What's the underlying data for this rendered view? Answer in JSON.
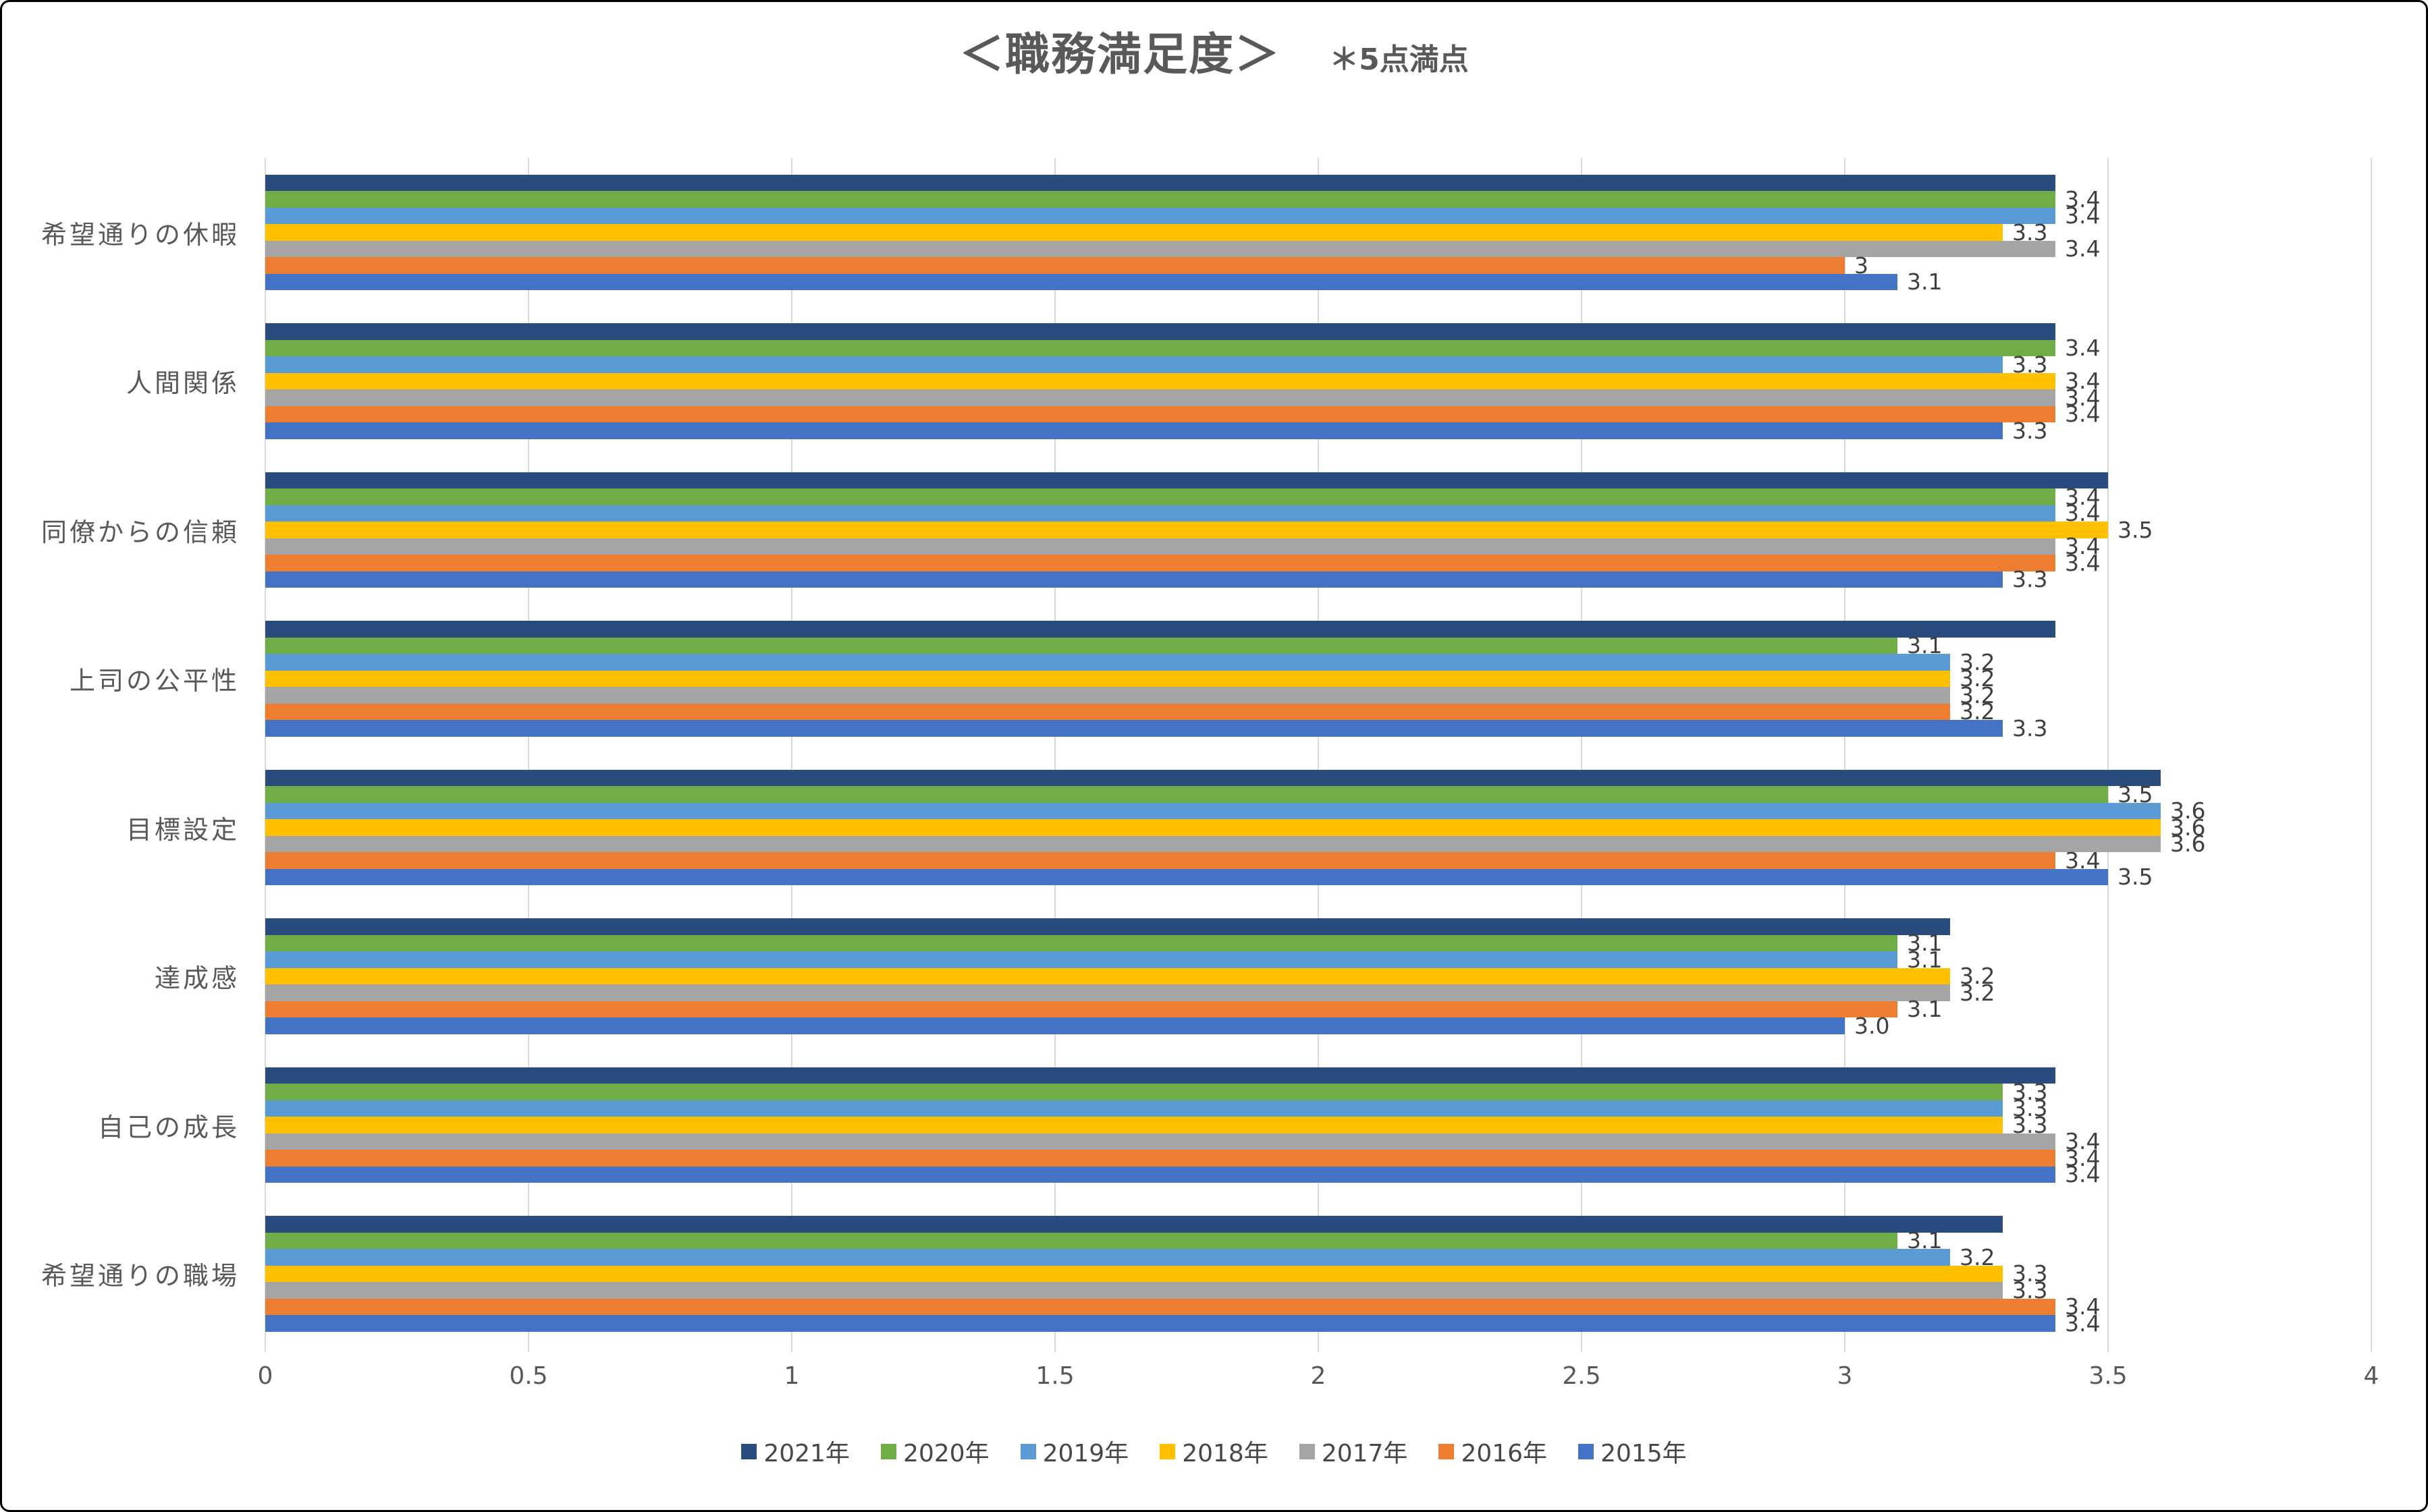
{
  "chart_data": {
    "type": "bar",
    "orientation": "horizontal",
    "title": "＜職務満足度＞",
    "note": "＊5点満点",
    "categories": [
      "希望通りの休暇",
      "人間関係",
      "同僚からの信頼",
      "上司の公平性",
      "目標設定",
      "達成感",
      "自己の成長",
      "希望通りの職場"
    ],
    "series": [
      {
        "name": "2021年",
        "color": "#2A4B7E",
        "values": [
          3.4,
          3.4,
          3.5,
          3.4,
          3.6,
          3.2,
          3.4,
          3.3
        ],
        "labels": [
          "",
          "",
          "",
          "",
          "",
          "",
          "",
          ""
        ]
      },
      {
        "name": "2020年",
        "color": "#70AD47",
        "values": [
          3.4,
          3.4,
          3.4,
          3.1,
          3.5,
          3.1,
          3.3,
          3.1
        ],
        "labels": [
          "3.4",
          "3.4",
          "3.4",
          "3.1",
          "3.5",
          "3.1",
          "3.3",
          "3.1"
        ]
      },
      {
        "name": "2019年",
        "color": "#5B9BD5",
        "values": [
          3.4,
          3.3,
          3.4,
          3.2,
          3.6,
          3.1,
          3.3,
          3.2
        ],
        "labels": [
          "3.4",
          "3.3",
          "3.4",
          "3.2",
          "3.6",
          "3.1",
          "3.3",
          "3.2"
        ]
      },
      {
        "name": "2018年",
        "color": "#FFC000",
        "values": [
          3.3,
          3.4,
          3.5,
          3.2,
          3.6,
          3.2,
          3.3,
          3.3
        ],
        "labels": [
          "3.3",
          "3.4",
          "3.5",
          "3.2",
          "3.6",
          "3.2",
          "3.3",
          "3.3"
        ]
      },
      {
        "name": "2017年",
        "color": "#A5A5A5",
        "values": [
          3.4,
          3.4,
          3.4,
          3.2,
          3.6,
          3.2,
          3.4,
          3.3
        ],
        "labels": [
          "3.4",
          "3.4",
          "3.4",
          "3.2",
          "3.6",
          "3.2",
          "3.4",
          "3.3"
        ]
      },
      {
        "name": "2016年",
        "color": "#ED7D31",
        "values": [
          3.0,
          3.4,
          3.4,
          3.2,
          3.4,
          3.1,
          3.4,
          3.4
        ],
        "labels": [
          "3",
          "3.4",
          "3.4",
          "3.2",
          "3.4",
          "3.1",
          "3.4",
          "3.4"
        ]
      },
      {
        "name": "2015年",
        "color": "#4472C4",
        "values": [
          3.1,
          3.3,
          3.3,
          3.3,
          3.5,
          3.0,
          3.4,
          3.4
        ],
        "labels": [
          "3.1",
          "3.3",
          "3.3",
          "3.3",
          "3.5",
          "3.0",
          "3.4",
          "3.4"
        ]
      }
    ],
    "xlim": [
      0,
      4
    ],
    "xticks": [
      0,
      0.5,
      1,
      1.5,
      2,
      2.5,
      3,
      3.5,
      4
    ],
    "xtick_labels": [
      "0",
      "0.5",
      "1",
      "1.5",
      "2",
      "2.5",
      "3",
      "3.5",
      "4"
    ],
    "grid": true,
    "gridline_color": "#D9D9D9",
    "legend_position": "bottom"
  }
}
